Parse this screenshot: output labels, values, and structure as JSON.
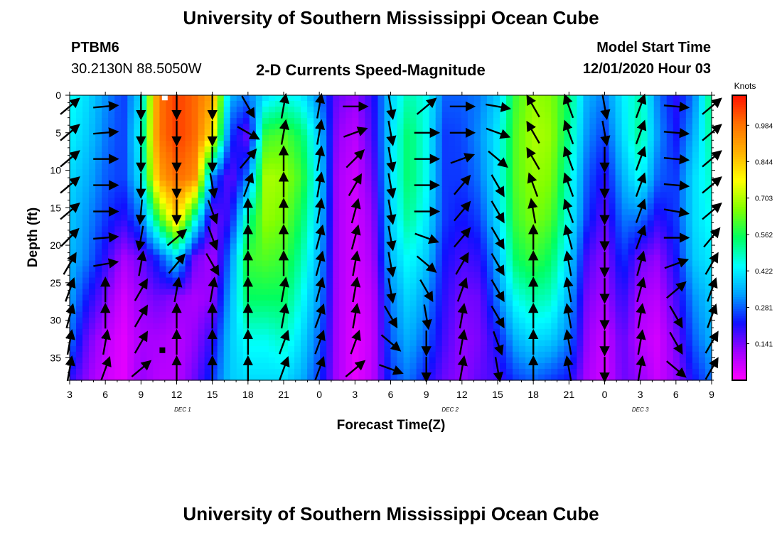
{
  "page": {
    "title_top": "University of Southern Mississippi Ocean Cube",
    "title_bottom": "University of Southern Mississippi Ocean Cube",
    "station_id": "PTBM6",
    "station_coords": "30.2130N 88.5050W",
    "model_start_label": "Model Start Time",
    "model_start_value": "12/01/2020 Hour 03"
  },
  "chart_data": {
    "type": "heatmap",
    "title": "2-D Currents Speed-Magnitude",
    "xlabel": "Forecast Time(Z)",
    "ylabel": "Depth (ft)",
    "x_tick_labels": [
      "3",
      "6",
      "9",
      "12",
      "15",
      "18",
      "21",
      "0",
      "3",
      "6",
      "9",
      "12",
      "15",
      "18",
      "21",
      "0",
      "3",
      "6",
      "9"
    ],
    "x_hours": [
      0,
      3,
      6,
      9,
      12,
      15,
      18,
      21,
      24,
      27,
      30,
      33,
      36,
      39,
      42,
      45,
      48,
      51,
      54
    ],
    "day_labels": [
      {
        "text": "DEC 1",
        "hour": 9.5
      },
      {
        "text": "DEC 2",
        "hour": 32
      },
      {
        "text": "DEC 3",
        "hour": 48
      }
    ],
    "y_ticks": [
      0,
      5,
      10,
      15,
      20,
      25,
      30,
      35
    ],
    "ylim": [
      0,
      38
    ],
    "colorbar": {
      "title": "Knots",
      "ticks": [
        "0.984",
        "0.844",
        "0.703",
        "0.562",
        "0.422",
        "0.281",
        "0.141"
      ],
      "range": [
        0.0,
        1.1
      ],
      "colors": [
        "#ff00ff",
        "#a000ff",
        "#1010ff",
        "#00a0ff",
        "#00ffff",
        "#00ff60",
        "#80ff00",
        "#ffff00",
        "#ffb000",
        "#ff7000",
        "#ff1000"
      ]
    },
    "speed_profiles": [
      {
        "hour": 0,
        "speed": [
          0.45,
          0.43,
          0.4,
          0.38,
          0.36,
          0.34,
          0.3,
          0.2
        ]
      },
      {
        "hour": 1.5,
        "speed": [
          0.4,
          0.38,
          0.35,
          0.32,
          0.3,
          0.22,
          0.15,
          0.12
        ]
      },
      {
        "hour": 3,
        "speed": [
          0.32,
          0.3,
          0.28,
          0.25,
          0.2,
          0.14,
          0.08,
          0.06
        ]
      },
      {
        "hour": 4.5,
        "speed": [
          0.25,
          0.25,
          0.25,
          0.2,
          0.1,
          0.05,
          0.03,
          0.03
        ]
      },
      {
        "hour": 6,
        "speed": [
          0.4,
          0.45,
          0.42,
          0.3,
          0.15,
          0.12,
          0.1,
          0.12
        ]
      },
      {
        "hour": 7.5,
        "speed": [
          0.98,
          0.98,
          0.9,
          0.6,
          0.25,
          0.15,
          0.1,
          0.08
        ]
      },
      {
        "hour": 9,
        "speed": [
          1.05,
          1.05,
          1.0,
          0.85,
          0.4,
          0.12,
          0.08,
          0.08
        ]
      },
      {
        "hour": 10.5,
        "speed": [
          1.0,
          1.0,
          0.95,
          0.5,
          0.15,
          0.1,
          0.12,
          0.15
        ]
      },
      {
        "hour": 12,
        "speed": [
          0.9,
          0.8,
          0.3,
          0.15,
          0.1,
          0.12,
          0.2,
          0.25
        ]
      },
      {
        "hour": 13.5,
        "speed": [
          0.35,
          0.25,
          0.15,
          0.2,
          0.3,
          0.35,
          0.38,
          0.38
        ]
      },
      {
        "hour": 15,
        "speed": [
          0.3,
          0.15,
          0.3,
          0.5,
          0.6,
          0.55,
          0.45,
          0.4
        ]
      },
      {
        "hour": 16.5,
        "speed": [
          0.4,
          0.6,
          0.7,
          0.68,
          0.62,
          0.55,
          0.45,
          0.4
        ]
      },
      {
        "hour": 18,
        "speed": [
          0.45,
          0.62,
          0.68,
          0.65,
          0.6,
          0.55,
          0.48,
          0.4
        ]
      },
      {
        "hour": 19.5,
        "speed": [
          0.42,
          0.55,
          0.6,
          0.55,
          0.5,
          0.45,
          0.4,
          0.35
        ]
      },
      {
        "hour": 21,
        "speed": [
          0.3,
          0.38,
          0.4,
          0.38,
          0.35,
          0.32,
          0.28,
          0.25
        ]
      },
      {
        "hour": 22.5,
        "speed": [
          0.15,
          0.12,
          0.1,
          0.1,
          0.1,
          0.1,
          0.1,
          0.1
        ]
      },
      {
        "hour": 24,
        "speed": [
          0.12,
          0.08,
          0.06,
          0.05,
          0.05,
          0.04,
          0.03,
          0.03
        ]
      },
      {
        "hour": 25.5,
        "speed": [
          0.2,
          0.18,
          0.15,
          0.12,
          0.1,
          0.08,
          0.07,
          0.08
        ]
      },
      {
        "hour": 27,
        "speed": [
          0.38,
          0.4,
          0.4,
          0.38,
          0.36,
          0.3,
          0.28,
          0.25
        ]
      },
      {
        "hour": 28.5,
        "speed": [
          0.5,
          0.55,
          0.55,
          0.52,
          0.45,
          0.4,
          0.35,
          0.3
        ]
      },
      {
        "hour": 30,
        "speed": [
          0.45,
          0.45,
          0.45,
          0.42,
          0.38,
          0.32,
          0.28,
          0.22
        ]
      },
      {
        "hour": 31.5,
        "speed": [
          0.28,
          0.25,
          0.25,
          0.25,
          0.22,
          0.2,
          0.18,
          0.15
        ]
      },
      {
        "hour": 33,
        "speed": [
          0.28,
          0.26,
          0.25,
          0.22,
          0.18,
          0.14,
          0.12,
          0.12
        ]
      },
      {
        "hour": 34.5,
        "speed": [
          0.3,
          0.32,
          0.3,
          0.26,
          0.2,
          0.15,
          0.14,
          0.16
        ]
      },
      {
        "hour": 36,
        "speed": [
          0.38,
          0.42,
          0.42,
          0.4,
          0.35,
          0.3,
          0.22,
          0.18
        ]
      },
      {
        "hour": 37.5,
        "speed": [
          0.6,
          0.62,
          0.62,
          0.6,
          0.55,
          0.45,
          0.35,
          0.25
        ]
      },
      {
        "hour": 39,
        "speed": [
          0.68,
          0.7,
          0.68,
          0.66,
          0.6,
          0.5,
          0.4,
          0.28
        ]
      },
      {
        "hour": 40.5,
        "speed": [
          0.66,
          0.68,
          0.66,
          0.62,
          0.55,
          0.48,
          0.38,
          0.25
        ]
      },
      {
        "hour": 42,
        "speed": [
          0.55,
          0.52,
          0.48,
          0.45,
          0.4,
          0.35,
          0.3,
          0.22
        ]
      },
      {
        "hour": 43.5,
        "speed": [
          0.35,
          0.32,
          0.28,
          0.25,
          0.18,
          0.14,
          0.12,
          0.1
        ]
      },
      {
        "hour": 45,
        "speed": [
          0.3,
          0.25,
          0.2,
          0.16,
          0.12,
          0.1,
          0.06,
          0.05
        ]
      },
      {
        "hour": 46.5,
        "speed": [
          0.42,
          0.4,
          0.35,
          0.3,
          0.25,
          0.2,
          0.16,
          0.15
        ]
      },
      {
        "hour": 48,
        "speed": [
          0.5,
          0.52,
          0.45,
          0.3,
          0.15,
          0.1,
          0.08,
          0.12
        ]
      },
      {
        "hour": 49.5,
        "speed": [
          0.3,
          0.32,
          0.28,
          0.2,
          0.12,
          0.08,
          0.05,
          0.06
        ]
      },
      {
        "hour": 51,
        "speed": [
          0.2,
          0.22,
          0.25,
          0.25,
          0.22,
          0.18,
          0.14,
          0.12
        ]
      },
      {
        "hour": 52.5,
        "speed": [
          0.3,
          0.35,
          0.4,
          0.4,
          0.38,
          0.32,
          0.28,
          0.22
        ]
      },
      {
        "hour": 54,
        "speed": [
          0.55,
          0.52,
          0.48,
          0.45,
          0.42,
          0.38,
          0.35,
          0.3
        ]
      }
    ],
    "arrow_depths": [
      1.5,
      5,
      8.5,
      12,
      15.5,
      19,
      22.5,
      26,
      29.5,
      33,
      36.5
    ],
    "arrow_columns": [
      {
        "hour": 0,
        "angle_deg": [
          40,
          40,
          40,
          40,
          40,
          45,
          60,
          70,
          75,
          80,
          80
        ]
      },
      {
        "hour": 3,
        "angle_deg": [
          5,
          5,
          0,
          0,
          0,
          5,
          10,
          90,
          90,
          80,
          70
        ]
      },
      {
        "hour": 6,
        "angle_deg": [
          -90,
          -90,
          -90,
          -90,
          -95,
          -100,
          80,
          60,
          60,
          60,
          40
        ]
      },
      {
        "hour": 9,
        "angle_deg": [
          -90,
          -90,
          -90,
          -90,
          -90,
          40,
          50,
          80,
          90,
          90,
          90
        ]
      },
      {
        "hour": 12,
        "angle_deg": [
          -90,
          -90,
          -90,
          -80,
          -70,
          -70,
          -60,
          80,
          90,
          90,
          90
        ]
      },
      {
        "hour": 15,
        "angle_deg": [
          -60,
          -30,
          50,
          70,
          90,
          90,
          90,
          90,
          90,
          90,
          90
        ]
      },
      {
        "hour": 18,
        "angle_deg": [
          80,
          80,
          90,
          90,
          90,
          90,
          90,
          80,
          80,
          70,
          70
        ]
      },
      {
        "hour": 21,
        "angle_deg": [
          80,
          80,
          80,
          80,
          80,
          75,
          75,
          75,
          70,
          70,
          70
        ]
      },
      {
        "hour": 24,
        "angle_deg": [
          0,
          20,
          45,
          60,
          75,
          75,
          80,
          80,
          80,
          70,
          40
        ]
      },
      {
        "hour": 27,
        "angle_deg": [
          -80,
          -80,
          -80,
          -80,
          -80,
          -80,
          -80,
          -80,
          -60,
          -40,
          -20
        ]
      },
      {
        "hour": 30,
        "angle_deg": [
          40,
          0,
          0,
          0,
          0,
          -20,
          -40,
          -60,
          -80,
          -90,
          -90
        ]
      },
      {
        "hour": 33,
        "angle_deg": [
          0,
          0,
          20,
          50,
          50,
          50,
          60,
          70,
          80,
          80,
          80
        ]
      },
      {
        "hour": 36,
        "angle_deg": [
          -10,
          -20,
          -40,
          -60,
          -60,
          -60,
          -60,
          -60,
          -60,
          -70,
          -80
        ]
      },
      {
        "hour": 39,
        "angle_deg": [
          120,
          120,
          120,
          110,
          100,
          90,
          90,
          90,
          90,
          90,
          90
        ]
      },
      {
        "hour": 42,
        "angle_deg": [
          110,
          110,
          110,
          110,
          110,
          105,
          100,
          100,
          100,
          100,
          100
        ]
      },
      {
        "hour": 45,
        "angle_deg": [
          -80,
          -80,
          -90,
          -90,
          -90,
          -90,
          -90,
          -90,
          -90,
          -90,
          -90
        ]
      },
      {
        "hour": 48,
        "angle_deg": [
          70,
          70,
          70,
          70,
          70,
          70,
          75,
          75,
          80,
          80,
          80
        ]
      },
      {
        "hour": 51,
        "angle_deg": [
          -5,
          -5,
          -5,
          -5,
          -10,
          0,
          20,
          40,
          -60,
          -60,
          -40
        ]
      },
      {
        "hour": 54,
        "angle_deg": [
          40,
          40,
          40,
          40,
          40,
          50,
          60,
          70,
          70,
          60,
          60
        ]
      }
    ],
    "markers": [
      {
        "hour": 7.8,
        "depth": 34,
        "color": "#000000"
      },
      {
        "hour": 8,
        "depth": 0.3,
        "color": "#ffffff"
      }
    ]
  }
}
